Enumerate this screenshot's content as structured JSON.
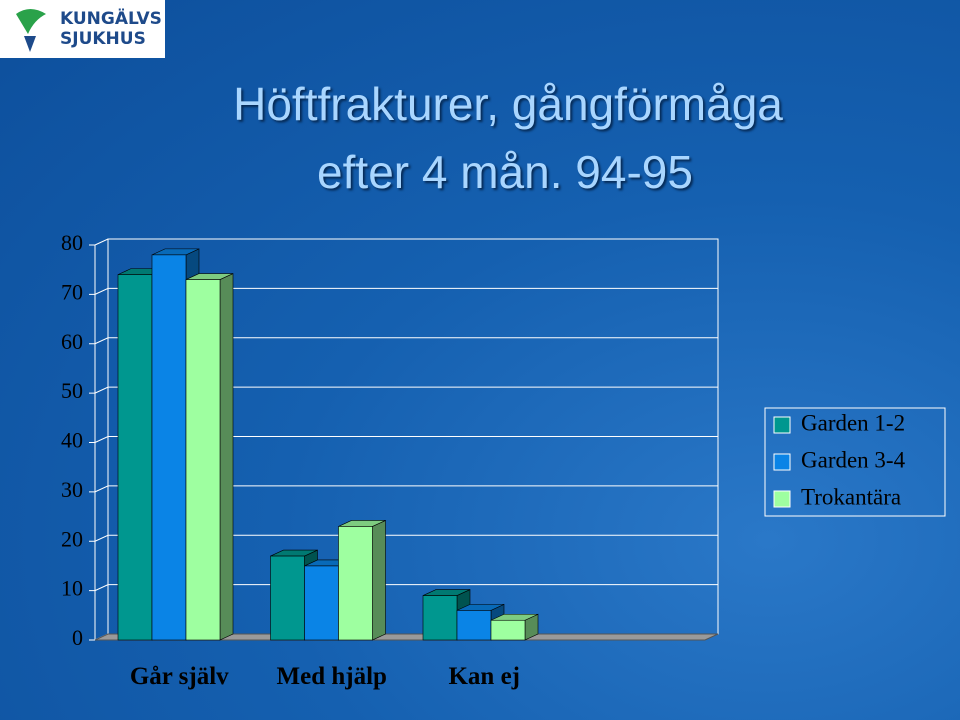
{
  "logo": [
    "KUNGÄLVS",
    "SJUKHUS"
  ],
  "chart_data": {
    "type": "bar3d",
    "title": [
      "Höftfrakturer, gångförmåga",
      "efter 4 mån. 94-95"
    ],
    "categories": [
      "Går själv",
      "Med hjälp",
      "Kan ej",
      null
    ],
    "series": [
      {
        "name": "Garden 1-2",
        "color": "#00978f",
        "values": [
          74,
          17,
          9,
          null
        ]
      },
      {
        "name": "Garden 3-4",
        "color": "#0a84e6",
        "values": [
          78,
          15,
          6,
          null
        ]
      },
      {
        "name": "Trokantära",
        "color": "#9effa0",
        "values": [
          73,
          23,
          4,
          null
        ]
      }
    ],
    "ylim": [
      0,
      80
    ],
    "yticks": [
      0,
      10,
      20,
      30,
      40,
      50,
      60,
      70,
      80
    ],
    "grid": true,
    "legend": "right"
  }
}
